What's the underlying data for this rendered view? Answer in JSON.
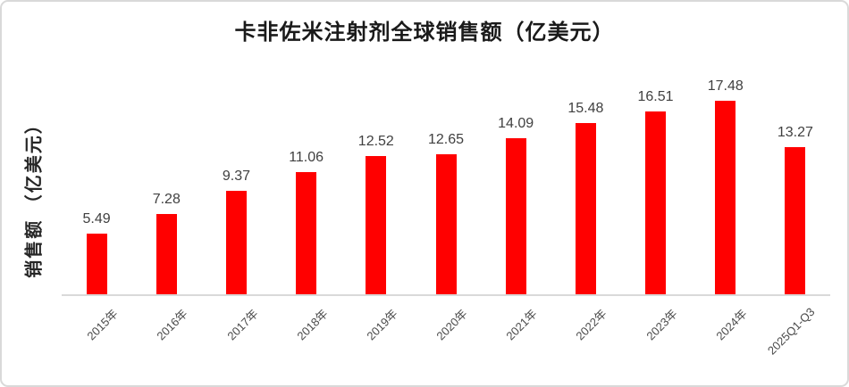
{
  "chart_data": {
    "type": "bar",
    "title": "卡非佐米注射剂全球销售额（亿美元）",
    "ylabel": "销售额 （亿美元）",
    "xlabel": "",
    "categories": [
      "2015年",
      "2016年",
      "2017年",
      "2018年",
      "2019年",
      "2020年",
      "2021年",
      "2022年",
      "2023年",
      "2024年",
      "2025Q1-Q3"
    ],
    "values": [
      5.49,
      7.28,
      9.37,
      11.06,
      12.52,
      12.65,
      14.09,
      15.48,
      16.51,
      17.48,
      13.27
    ],
    "ylim": [
      0,
      20
    ],
    "grid": false,
    "legend": "none",
    "data_labels": true,
    "bar_count": 11,
    "colors": {
      "bar": "#FF0000",
      "data_label": "#404040",
      "axis_line": "#D9D9D9",
      "tick_label": "#4A4A4A",
      "title": "#1A1A1A",
      "card_border": "#D9D9D9",
      "background": "#FFFFFF"
    }
  }
}
